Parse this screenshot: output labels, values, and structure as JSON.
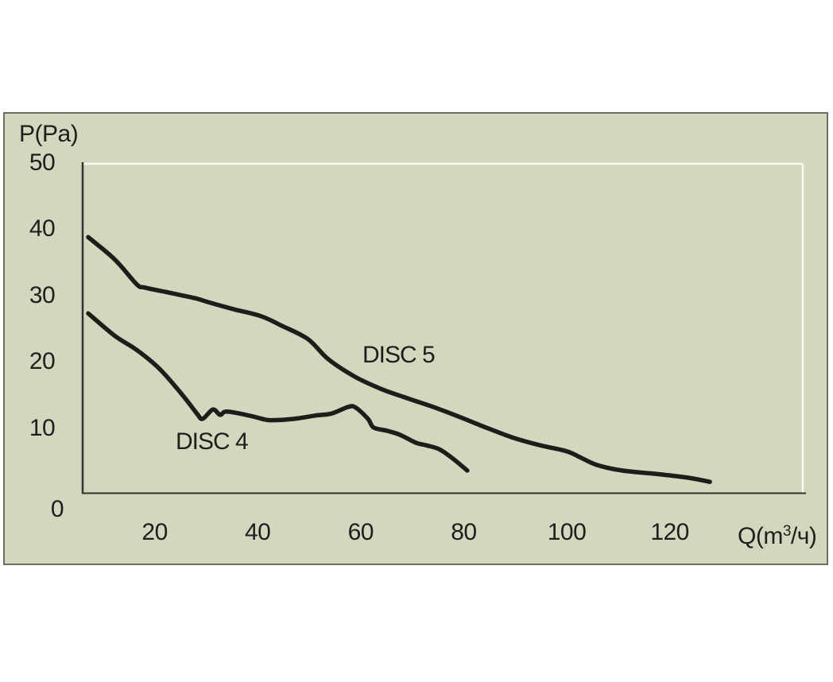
{
  "page": {
    "background": "#ffffff"
  },
  "panel": {
    "background": "#d3d7bd",
    "border_color": "#6f6f66"
  },
  "labels": {
    "y_axis_title": "P(Pa)",
    "x_axis_unit": {
      "prefix": "Q(m",
      "sup": "3",
      "suffix": "/ч)"
    }
  },
  "colors": {
    "curve": "#1d1d1b",
    "axis_line": "#32322e",
    "inner_border": "#f9f9f1",
    "text": "#1e1e1c"
  },
  "chart_data": {
    "type": "line",
    "title": "",
    "xlabel": "Q(m³/ч)",
    "ylabel": "P(Pa)",
    "x_ticks": [
      20,
      40,
      60,
      80,
      100,
      120
    ],
    "y_ticks": [
      50,
      40,
      30,
      20,
      10,
      0
    ],
    "xlim": [
      6,
      146
    ],
    "ylim": [
      0,
      50
    ],
    "grid": false,
    "legend_position": "inline-annotations",
    "series": [
      {
        "name": "DISC 5",
        "points": [
          [
            7.1,
            38.8
          ],
          [
            12.3,
            35.4
          ],
          [
            16.5,
            31.7
          ],
          [
            18.1,
            31.2
          ],
          [
            22.4,
            30.5
          ],
          [
            27.8,
            29.6
          ],
          [
            30.4,
            29.0
          ],
          [
            35.5,
            27.9
          ],
          [
            40.6,
            26.9
          ],
          [
            44.8,
            25.4
          ],
          [
            49.8,
            23.4
          ],
          [
            53.7,
            20.4
          ],
          [
            59.0,
            17.7
          ],
          [
            64.0,
            15.9
          ],
          [
            69.1,
            14.5
          ],
          [
            74.4,
            13.1
          ],
          [
            79.5,
            11.6
          ],
          [
            84.6,
            10.0
          ],
          [
            89.8,
            8.5
          ],
          [
            94.9,
            7.4
          ],
          [
            100.0,
            6.5
          ],
          [
            103.1,
            5.4
          ],
          [
            106.0,
            4.4
          ],
          [
            110.8,
            3.6
          ],
          [
            118.5,
            3.0
          ],
          [
            123.7,
            2.5
          ],
          [
            127.8,
            1.9
          ]
        ]
      },
      {
        "name": "DISC 4",
        "points": [
          [
            7.1,
            27.3
          ],
          [
            12.3,
            23.9
          ],
          [
            16.5,
            21.8
          ],
          [
            21.0,
            18.9
          ],
          [
            25.5,
            14.9
          ],
          [
            28.2,
            12.2
          ],
          [
            29.3,
            11.4
          ],
          [
            31.3,
            12.8
          ],
          [
            32.7,
            12.0
          ],
          [
            34.0,
            12.5
          ],
          [
            38.3,
            11.9
          ],
          [
            41.4,
            11.3
          ],
          [
            43.2,
            11.2
          ],
          [
            47.1,
            11.4
          ],
          [
            51.2,
            11.9
          ],
          [
            54.3,
            12.2
          ],
          [
            57.6,
            13.2
          ],
          [
            59.0,
            13.1
          ],
          [
            61.4,
            11.4
          ],
          [
            62.5,
            10.1
          ],
          [
            65.1,
            9.6
          ],
          [
            67.6,
            9.0
          ],
          [
            70.7,
            7.8
          ],
          [
            72.8,
            7.4
          ],
          [
            75.3,
            6.8
          ],
          [
            77.9,
            5.4
          ],
          [
            80.7,
            3.6
          ]
        ]
      }
    ]
  }
}
